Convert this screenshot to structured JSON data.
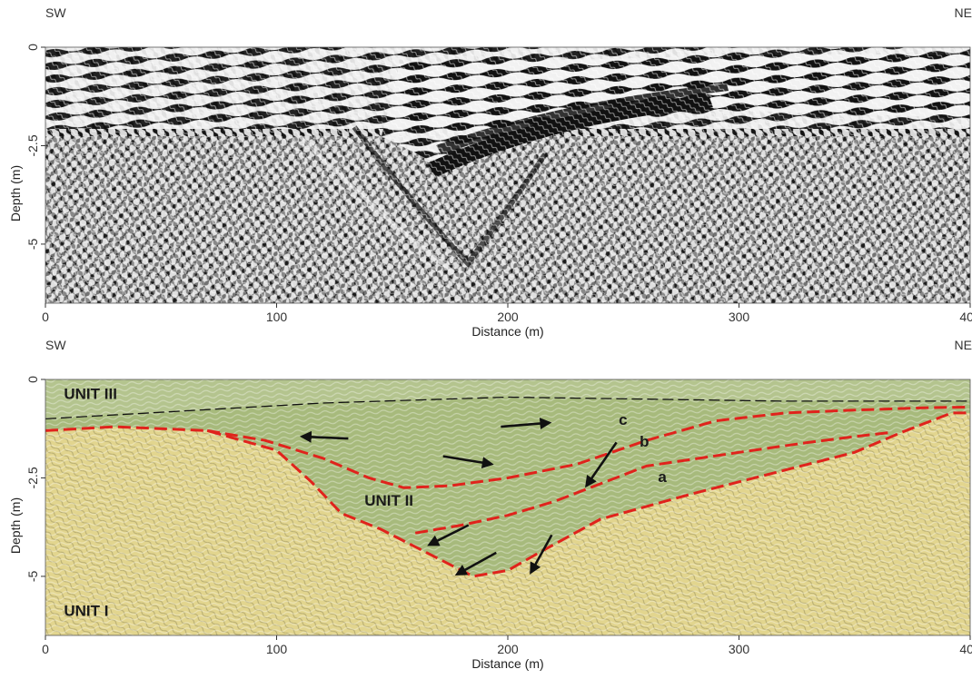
{
  "colors": {
    "radargram_dark": "#111111",
    "radargram_light": "#f2f2f2",
    "unit1_fill": "#e2d58e",
    "unit2_fill": "#a7ba7c",
    "unit3_fill": "#b4c48e",
    "reflector_line": "#e0231c",
    "boundary_line": "#111111",
    "arrow": "#111111"
  },
  "chart_data": [
    {
      "type": "heatmap",
      "name_hint": "raw-radargram",
      "xlabel": "Distance (m)",
      "ylabel": "Depth (m)",
      "xlim": [
        0,
        400
      ],
      "ylim": [
        0,
        6.5
      ],
      "x_ticks": [
        "0",
        "100",
        "200",
        "300",
        "400"
      ],
      "x_tick_values": [
        0,
        100,
        200,
        300,
        400
      ],
      "y_ticks": [
        "0",
        "-2.5",
        "-5"
      ],
      "y_tick_values": [
        0,
        2.5,
        5
      ],
      "direction_left": "SW",
      "direction_right": "NE",
      "grid": false
    },
    {
      "type": "heatmap",
      "name_hint": "interpreted-radargram",
      "xlabel": "Distance (m)",
      "ylabel": "Depth (m)",
      "xlim": [
        0,
        400
      ],
      "ylim": [
        0,
        6.5
      ],
      "x_ticks": [
        "0",
        "100",
        "200",
        "300",
        "400"
      ],
      "x_tick_values": [
        0,
        100,
        200,
        300,
        400
      ],
      "y_ticks": [
        "0",
        "-2.5",
        "-5"
      ],
      "y_tick_values": [
        0,
        2.5,
        5
      ],
      "direction_left": "SW",
      "direction_right": "NE",
      "grid": false,
      "units": [
        {
          "label": "UNIT III",
          "x": 8,
          "depth": 0.5
        },
        {
          "label": "UNIT II",
          "x": 138,
          "depth": 3.2
        },
        {
          "label": "UNIT I",
          "x": 8,
          "depth": 6.0
        }
      ],
      "boundaries": [
        {
          "name": "unit-iii-base",
          "style": "dashed-black",
          "x": [
            0,
            60,
            120,
            200,
            260,
            320,
            360,
            400
          ],
          "depth": [
            1.0,
            0.8,
            0.6,
            0.45,
            0.5,
            0.55,
            0.55,
            0.55
          ]
        }
      ],
      "reflectors": [
        {
          "label": "a",
          "x": [
            0,
            30,
            70,
            100,
            115,
            128,
            145,
            165,
            185,
            200,
            215,
            240,
            280,
            320,
            350,
            370,
            392,
            400
          ],
          "depth": [
            1.3,
            1.2,
            1.3,
            1.8,
            2.6,
            3.4,
            3.8,
            4.4,
            5.0,
            4.85,
            4.35,
            3.55,
            2.9,
            2.3,
            1.85,
            1.35,
            0.85,
            0.85
          ]
        },
        {
          "label": "b",
          "x": [
            160,
            180,
            200,
            220,
            240,
            260,
            300,
            330,
            350,
            365
          ],
          "depth": [
            3.9,
            3.7,
            3.45,
            3.1,
            2.65,
            2.2,
            1.85,
            1.6,
            1.45,
            1.35
          ]
        },
        {
          "label": "c",
          "x": [
            70,
            95,
            120,
            140,
            155,
            175,
            200,
            230,
            260,
            290,
            320,
            350,
            380,
            400
          ],
          "depth": [
            1.3,
            1.55,
            2.0,
            2.5,
            2.75,
            2.7,
            2.5,
            2.15,
            1.55,
            1.05,
            0.85,
            0.78,
            0.72,
            0.7
          ]
        }
      ],
      "reflector_labels": [
        {
          "text": "c",
          "x": 248,
          "depth": 1.15
        },
        {
          "text": "b",
          "x": 257,
          "depth": 1.7
        },
        {
          "text": "a",
          "x": 265,
          "depth": 2.6
        }
      ],
      "arrows": [
        {
          "from_x": 131,
          "from_depth": 1.5,
          "to_x": 111,
          "to_depth": 1.45
        },
        {
          "from_x": 172,
          "from_depth": 1.95,
          "to_x": 193,
          "to_depth": 2.15
        },
        {
          "from_x": 197,
          "from_depth": 1.2,
          "to_x": 218,
          "to_depth": 1.1
        },
        {
          "from_x": 247,
          "from_depth": 1.6,
          "to_x": 234,
          "to_depth": 2.7
        },
        {
          "from_x": 183,
          "from_depth": 3.7,
          "to_x": 166,
          "to_depth": 4.2
        },
        {
          "from_x": 195,
          "from_depth": 4.4,
          "to_x": 178,
          "to_depth": 4.95
        },
        {
          "from_x": 219,
          "from_depth": 3.95,
          "to_x": 210,
          "to_depth": 4.9
        }
      ]
    }
  ]
}
